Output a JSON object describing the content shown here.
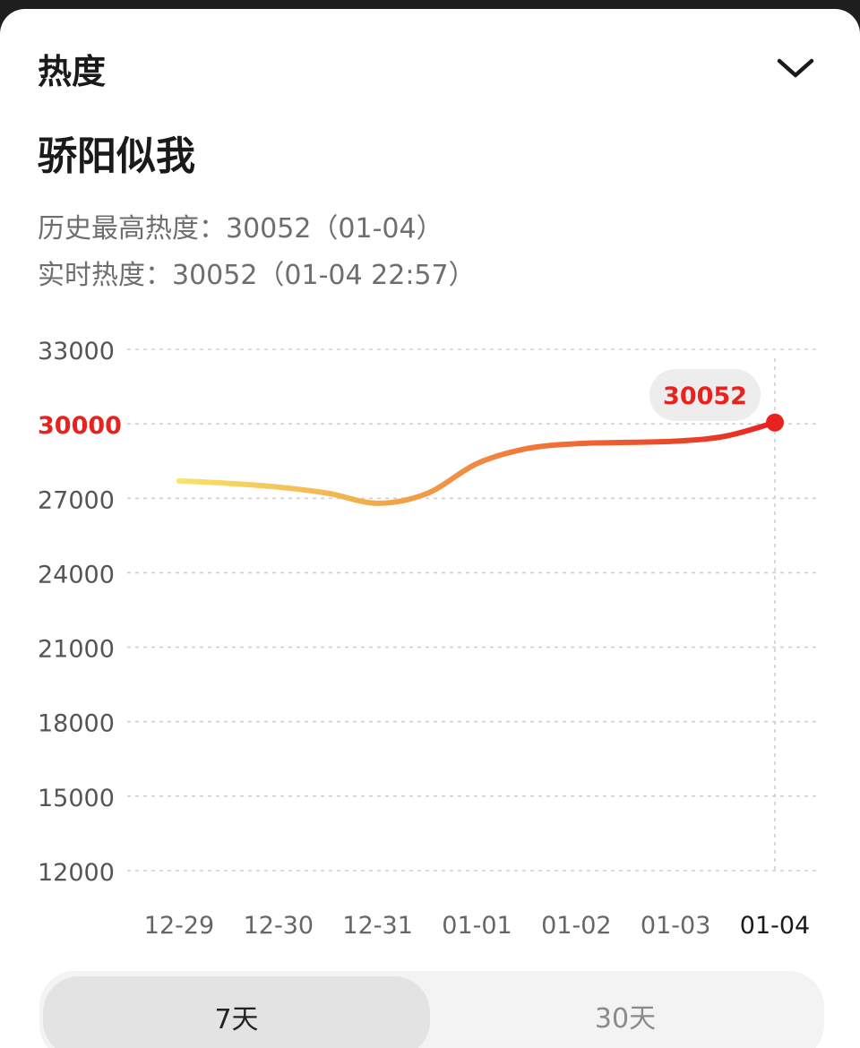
{
  "header": {
    "title": "热度"
  },
  "topic": {
    "name": "骄阳似我"
  },
  "stats": {
    "peak_label": "历史最高热度：",
    "peak_value": "30052（01-04）",
    "realtime_label": "实时热度：",
    "realtime_value": "30052（01-04 22:57）"
  },
  "chart_data": {
    "type": "line",
    "title": "",
    "xlabel": "",
    "ylabel": "",
    "categories": [
      "12-29",
      "12-30",
      "12-31",
      "01-01",
      "01-02",
      "01-03",
      "01-04"
    ],
    "x_highlight": "01-04",
    "ylim": [
      12000,
      33000
    ],
    "y_ticks": [
      33000,
      30000,
      27000,
      24000,
      21000,
      18000,
      15000,
      12000
    ],
    "y_tick_labels": [
      "33000",
      "30000",
      "27000",
      "24000",
      "21000",
      "18000",
      "15000",
      "12000"
    ],
    "y_highlight_tick": 30000,
    "series": [
      {
        "x": [
          0,
          0.5,
          1,
          1.5,
          2,
          2.5,
          3,
          3.5,
          4,
          4.5,
          5,
          5.5,
          6
        ],
        "values": [
          27700,
          27600,
          27450,
          27200,
          26800,
          27200,
          28400,
          29000,
          29200,
          29250,
          29300,
          29500,
          30052
        ]
      }
    ],
    "callout_value": "30052",
    "grid": "dashed-horizontal",
    "gradient_colors": [
      "#f7e36a",
      "#f2a94a",
      "#ee6a35",
      "#e8231f"
    ],
    "accent_color": "#e8231f"
  },
  "tabs": [
    {
      "label": "7天",
      "active": true
    },
    {
      "label": "30天",
      "active": false
    }
  ]
}
